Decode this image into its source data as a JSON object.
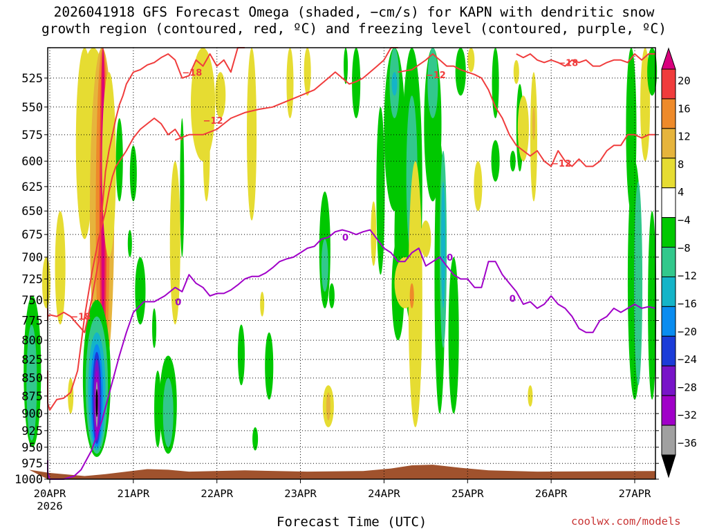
{
  "title": {
    "line1": "2026041918 GFS Forecast Omega (shaded, −cm/s) for KAPN with dendritic snow",
    "line2": "growth region (contoured, red, ºC) and freezing level (contoured, purple, ºC)"
  },
  "credit": "coolwx.com/models",
  "chart_data": {
    "type": "heatmap",
    "title": "2026041918 GFS Forecast Omega (shaded, −cm/s) for KAPN with dendritic snow growth region (contoured, red, ºC) and freezing level (contoured, purple, ºC)",
    "xlabel": "Forecast Time (UTC)",
    "ylabel": "",
    "x_ticks": [
      "20APR\n2026",
      "21APR",
      "22APR",
      "23APR",
      "24APR",
      "25APR",
      "26APR",
      "27APR"
    ],
    "x_tick_labels": [
      "20APR",
      "21APR",
      "22APR",
      "23APR",
      "24APR",
      "25APR",
      "26APR",
      "27APR"
    ],
    "x_year_label": "2026",
    "xlim_hours": [
      -6,
      174
    ],
    "y_ticks": [
      525,
      550,
      575,
      600,
      625,
      650,
      675,
      700,
      725,
      750,
      775,
      800,
      825,
      850,
      875,
      900,
      925,
      950,
      975,
      1000
    ],
    "ylim": [
      500,
      1000
    ],
    "y_scale": "log",
    "y_inverted": true,
    "grid": true,
    "colorbar": {
      "levels": [
        -36,
        -32,
        -28,
        -24,
        -20,
        -16,
        -12,
        -8,
        -4,
        4,
        8,
        12,
        16,
        20
      ],
      "labels": [
        "20",
        "16",
        "12",
        "8",
        "4",
        "−4",
        "−8",
        "−12",
        "−16",
        "−20",
        "−24",
        "−28",
        "−32",
        "−36"
      ],
      "colors": [
        "#d9007d",
        "#f03c3c",
        "#ee8a2a",
        "#e6b43c",
        "#e6dc32",
        "#ffffff",
        "#00c800",
        "#32c88c",
        "#14b4c8",
        "#0a8cf0",
        "#1c3cd8",
        "#7814c8",
        "#a000c8",
        "#a0a0a0",
        "#000000"
      ]
    },
    "contour_labels": [
      {
        "text": "−18",
        "color": "#f03c3c"
      },
      {
        "text": "−18",
        "color": "#f03c3c"
      },
      {
        "text": "−18",
        "color": "#f03c3c"
      },
      {
        "text": "−12",
        "color": "#f03c3c"
      },
      {
        "text": "−12",
        "color": "#f03c3c"
      },
      {
        "text": "−12",
        "color": "#f03c3c"
      },
      {
        "text": "0",
        "color": "#a000c8"
      },
      {
        "text": "0",
        "color": "#a000c8"
      },
      {
        "text": "0",
        "color": "#a000c8"
      },
      {
        "text": "0",
        "color": "#a000c8"
      }
    ],
    "series": [
      {
        "name": "−18 ºC",
        "color": "#f03c3c",
        "x": [
          -6,
          -4,
          -2,
          0,
          2,
          4,
          6,
          8,
          10,
          12,
          14,
          15,
          16,
          17,
          18,
          19,
          20,
          21,
          22,
          24,
          26,
          28,
          30,
          32,
          34,
          36,
          38,
          40,
          42,
          44,
          46,
          48,
          50,
          52,
          54,
          56
        ],
        "y": [
          760,
          775,
          770,
          768,
          770,
          765,
          770,
          780,
          790,
          750,
          705,
          650,
          610,
          590,
          575,
          560,
          548,
          540,
          530,
          520,
          518,
          514,
          512,
          508,
          505,
          510,
          525,
          523,
          510,
          515,
          505,
          515,
          510,
          520,
          500,
          495
        ]
      },
      {
        "name": "−18 ºC",
        "color": "#f03c3c",
        "x": [
          -6,
          -4,
          -2,
          0,
          2,
          4,
          6,
          8,
          10,
          12,
          14,
          16,
          17,
          18,
          19,
          20,
          21,
          22,
          24,
          26,
          28,
          30,
          32,
          34,
          36,
          38
        ],
        "y": [
          840,
          860,
          885,
          895,
          880,
          878,
          870,
          840,
          770,
          720,
          680,
          650,
          630,
          615,
          605,
          600,
          595,
          590,
          578,
          570,
          565,
          560,
          565,
          575,
          570,
          580
        ]
      },
      {
        "name": "−12 ºC",
        "color": "#f03c3c",
        "x": [
          36,
          40,
          44,
          48,
          52,
          56,
          60,
          64,
          68,
          72,
          76,
          80,
          82,
          84,
          86,
          88,
          90,
          92,
          94,
          96,
          98,
          100
        ],
        "y": [
          580,
          575,
          575,
          570,
          560,
          555,
          552,
          550,
          545,
          540,
          535,
          525,
          520,
          525,
          530,
          528,
          525,
          520,
          515,
          510,
          500,
          495
        ]
      },
      {
        "name": "−12 ºC",
        "color": "#f03c3c",
        "x": [
          100,
          104,
          108,
          110,
          112,
          114,
          116,
          118,
          120,
          122,
          124,
          126,
          128,
          130,
          132,
          134,
          136,
          138,
          140,
          142,
          144,
          146,
          148,
          150,
          152,
          154,
          156,
          158,
          160,
          162,
          164,
          166,
          168,
          170,
          172,
          174
        ],
        "y": [
          520,
          518,
          510,
          505,
          510,
          515,
          515,
          518,
          520,
          522,
          525,
          535,
          550,
          560,
          575,
          585,
          590,
          595,
          590,
          600,
          605,
          590,
          600,
          605,
          598,
          605,
          605,
          600,
          590,
          585,
          585,
          575,
          575,
          578,
          575,
          575
        ]
      },
      {
        "name": "−18 ºC",
        "color": "#f03c3c",
        "x": [
          134,
          136,
          138,
          140,
          142,
          144,
          146,
          148,
          150,
          152,
          154,
          156,
          158,
          160,
          162,
          164,
          166,
          168,
          170,
          172,
          174
        ],
        "y": [
          505,
          508,
          505,
          510,
          512,
          510,
          512,
          515,
          510,
          512,
          510,
          515,
          515,
          512,
          510,
          510,
          512,
          505,
          510,
          505,
          505
        ]
      },
      {
        "name": "0 ºC",
        "color": "#a000c8",
        "x": [
          -6,
          -3,
          0,
          4,
          7,
          9,
          12,
          15,
          18,
          20,
          22,
          24,
          27,
          30,
          33,
          36,
          38,
          40,
          42,
          44,
          46,
          48,
          50,
          52,
          54,
          56,
          58,
          60,
          62,
          64,
          66,
          68,
          70,
          72,
          74,
          76,
          78,
          80,
          82,
          84,
          86,
          88,
          90,
          92,
          94,
          96,
          98,
          100,
          102,
          104,
          106,
          108,
          110,
          112,
          114,
          116,
          118,
          120,
          122,
          124,
          126,
          128,
          130,
          132,
          134,
          136,
          138,
          140,
          142,
          144,
          146,
          148,
          150,
          152,
          154,
          156,
          158,
          160,
          162,
          164,
          166,
          168,
          170,
          172,
          174
        ],
        "y": [
          970,
          990,
          1000,
          1000,
          995,
          985,
          955,
          910,
          855,
          820,
          790,
          765,
          752,
          752,
          745,
          735,
          740,
          720,
          730,
          735,
          745,
          742,
          742,
          738,
          732,
          725,
          722,
          722,
          718,
          712,
          705,
          702,
          700,
          695,
          690,
          688,
          680,
          678,
          672,
          670,
          672,
          675,
          672,
          670,
          680,
          690,
          695,
          705,
          705,
          695,
          690,
          710,
          705,
          700,
          710,
          720,
          725,
          725,
          735,
          735,
          705,
          705,
          720,
          730,
          740,
          755,
          752,
          760,
          755,
          745,
          755,
          760,
          770,
          785,
          790,
          790,
          775,
          770,
          760,
          765,
          760,
          755,
          760,
          758,
          760
        ]
      }
    ]
  }
}
